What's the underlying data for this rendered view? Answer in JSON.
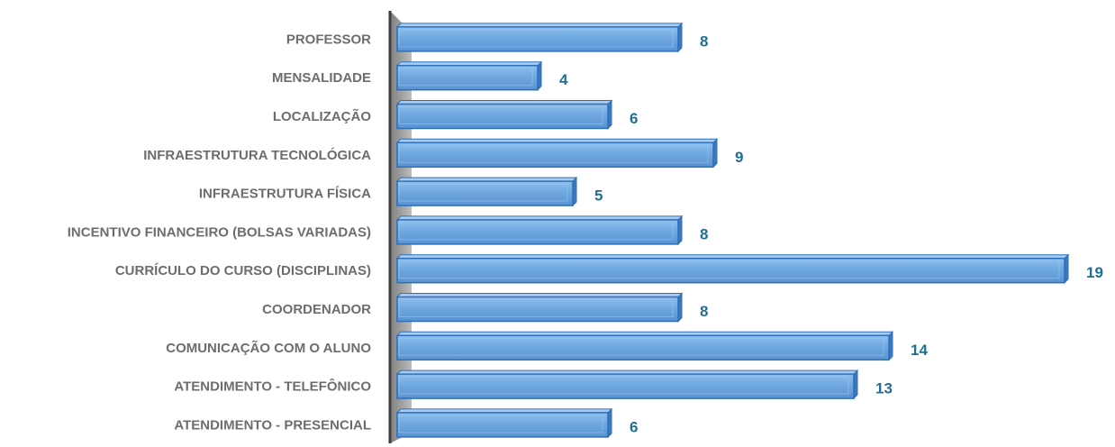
{
  "chart_data": {
    "type": "bar",
    "orientation": "horizontal",
    "categories": [
      "PROFESSOR",
      "MENSALIDADE",
      "LOCALIZAÇÃO",
      "INFRAESTRUTURA TECNOLÓGICA",
      "INFRAESTRUTURA FÍSICA",
      "INCENTIVO FINANCEIRO (BOLSAS VARIADAS)",
      "CURRÍCULO DO CURSO (DISCIPLINAS)",
      "COORDENADOR",
      "COMUNICAÇÃO COM O ALUNO",
      "ATENDIMENTO - TELEFÔNICO",
      "ATENDIMENTO - PRESENCIAL"
    ],
    "values": [
      8,
      4,
      6,
      9,
      5,
      8,
      19,
      8,
      14,
      13,
      6
    ],
    "title": "",
    "xlabel": "",
    "ylabel": "",
    "xlim": [
      0,
      19
    ],
    "grid": false,
    "legend": "none",
    "data_labels": true,
    "bar_color": "#6fa8e0",
    "bar_edge_color": "#2f6fb8",
    "label_color": "#6d6d6d",
    "value_label_color": "#1f6f94",
    "axis_wall_color": "#a6a6a6"
  }
}
